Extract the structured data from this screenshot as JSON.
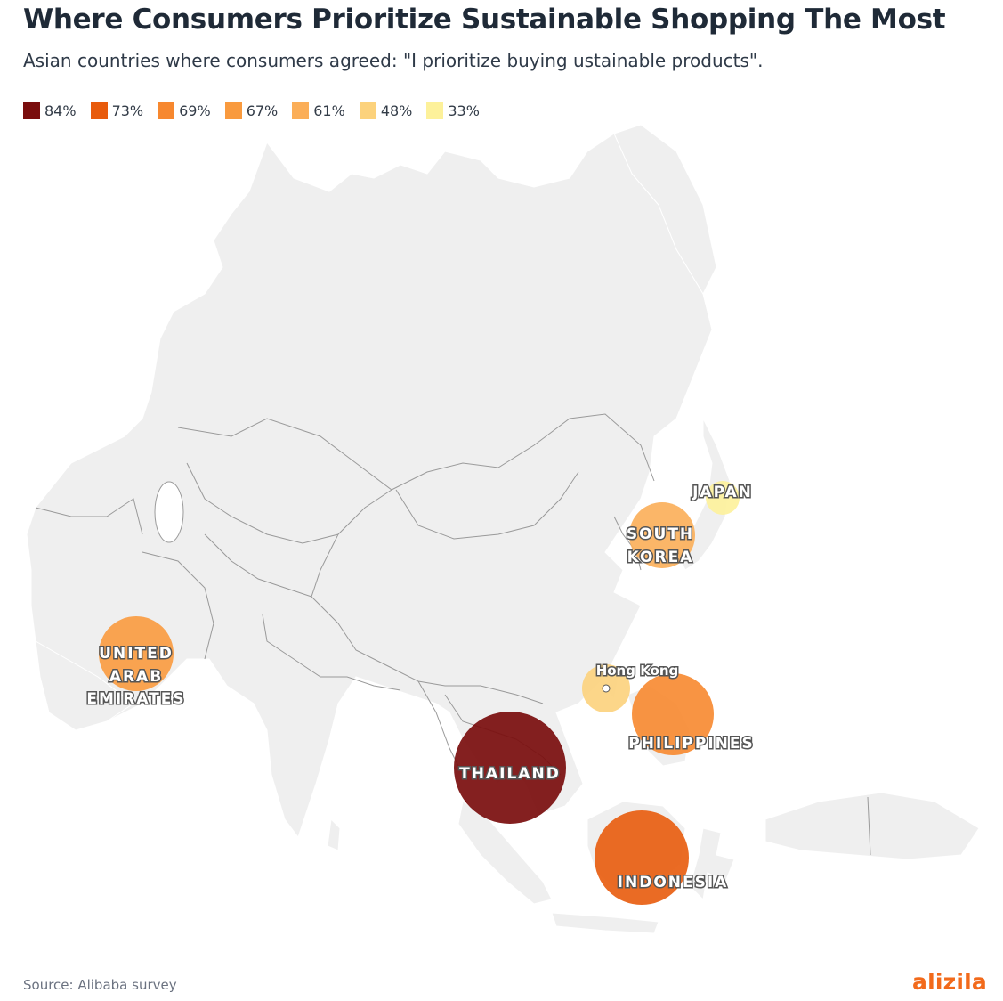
{
  "title": "Where Consumers Prioritize Sustainable Shopping The Most",
  "subtitle": "Asian countries where consumers agreed: \"I prioritize buying ustainable products\".",
  "legend": [
    {
      "label": "84%",
      "color": "#7a0d0d"
    },
    {
      "label": "73%",
      "color": "#e85b0c"
    },
    {
      "label": "69%",
      "color": "#f7882f"
    },
    {
      "label": "67%",
      "color": "#f99a3e"
    },
    {
      "label": "61%",
      "color": "#fbae58"
    },
    {
      "label": "48%",
      "color": "#fcd27c"
    },
    {
      "label": "33%",
      "color": "#fdf19a"
    }
  ],
  "markers": [
    {
      "name": "Thailand",
      "value": 84,
      "label_lines": [
        "THAILAND"
      ],
      "color": "#7a0d0d"
    },
    {
      "name": "Indonesia",
      "value": 73,
      "label_lines": [
        "INDONESIA"
      ],
      "color": "#e85b0c"
    },
    {
      "name": "Philippines",
      "value": 69,
      "label_lines": [
        "PHILIPPINES"
      ],
      "color": "#f7882f"
    },
    {
      "name": "United Arab Emirates",
      "value": 67,
      "label_lines": [
        "UNITED",
        "ARAB",
        "EMIRATES"
      ],
      "color": "#f99a3e"
    },
    {
      "name": "South Korea",
      "value": 61,
      "label_lines": [
        "SOUTH",
        "KOREA"
      ],
      "color": "#fbae58"
    },
    {
      "name": "Hong Kong",
      "value": 48,
      "label_lines": [
        "Hong Kong"
      ],
      "color": "#fcd27c"
    },
    {
      "name": "Japan",
      "value": 33,
      "label_lines": [
        "JAPAN"
      ],
      "color": "#fdf19a"
    }
  ],
  "source": "Source: Alibaba survey",
  "brand": "alizila",
  "colors": {
    "land": "#efefef",
    "border": "#9a9a9a",
    "brand": "#f26a1b"
  }
}
